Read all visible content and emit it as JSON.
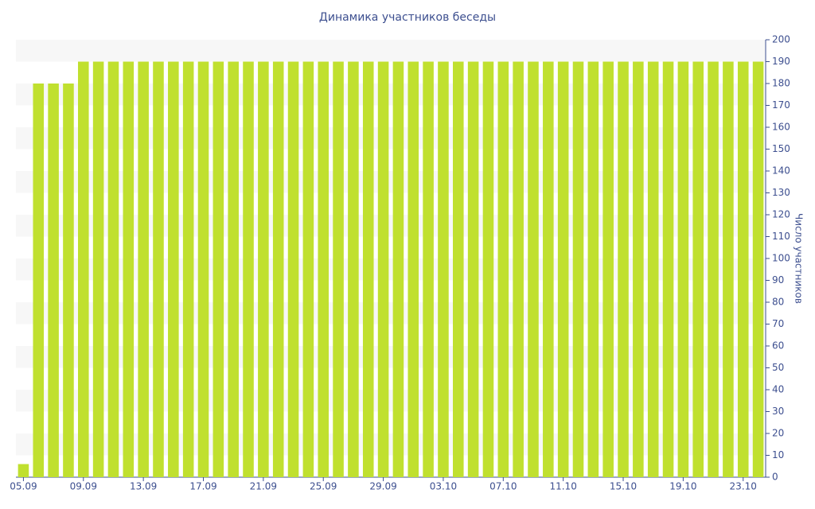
{
  "chart_data": {
    "type": "bar",
    "title": "Динамика участников беседы",
    "y_label": "Число участников",
    "categories": [
      "05.09",
      null,
      null,
      null,
      "09.09",
      null,
      null,
      null,
      "13.09",
      null,
      null,
      null,
      "17.09",
      null,
      null,
      null,
      "21.09",
      null,
      null,
      null,
      "25.09",
      null,
      null,
      null,
      "29.09",
      null,
      null,
      null,
      "03.10",
      null,
      null,
      null,
      "07.10",
      null,
      null,
      null,
      "11.10",
      null,
      null,
      null,
      "15.10",
      null,
      null,
      null,
      "19.10",
      null,
      null,
      null,
      "23.10",
      null
    ],
    "values": [
      6,
      180,
      180,
      180,
      190,
      190,
      190,
      190,
      190,
      190,
      190,
      190,
      190,
      190,
      190,
      190,
      190,
      190,
      190,
      190,
      190,
      190,
      190,
      190,
      190,
      190,
      190,
      190,
      190,
      190,
      190,
      190,
      190,
      190,
      190,
      190,
      190,
      190,
      190,
      190,
      190,
      190,
      190,
      190,
      190,
      190,
      190,
      190,
      190,
      190
    ],
    "color": "#c0e02f",
    "ylim": [
      0,
      200
    ],
    "yticks": [
      0,
      10,
      20,
      30,
      40,
      50,
      60,
      70,
      80,
      90,
      100,
      110,
      120,
      130,
      140,
      150,
      160,
      170,
      180,
      190,
      200
    ],
    "y_axis_side": "right",
    "grid": "bands"
  }
}
